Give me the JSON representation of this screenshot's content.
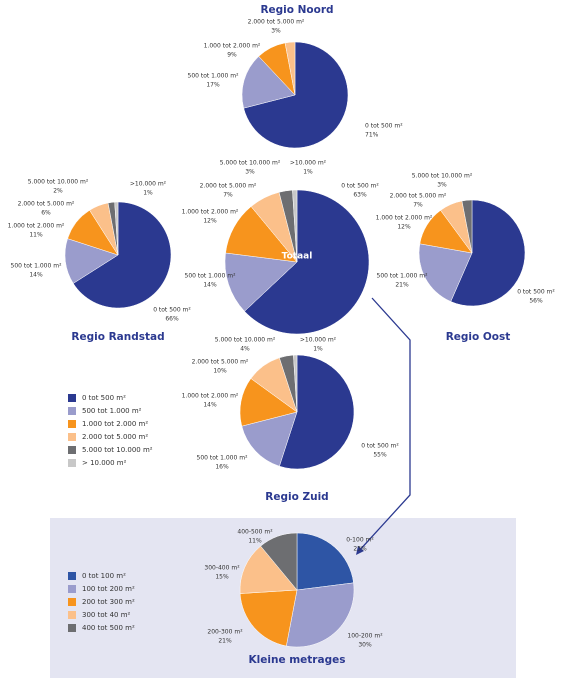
{
  "chart_data": [
    {
      "type": "pie",
      "title": "Regio Noord",
      "categories": [
        "0 tot 500 m²",
        "500 tot 1.000 m²",
        "1.000 tot 2.000 m²",
        "2.000 tot 5.000 m²"
      ],
      "values": [
        71,
        17,
        9,
        3
      ],
      "value_labels": [
        "71%",
        "17%",
        "9%",
        "3%"
      ],
      "colors": [
        "#2b3990",
        "#9a9ccc",
        "#f7941d",
        "#fbc08a"
      ]
    },
    {
      "type": "pie",
      "title": "Regio Randstad",
      "categories": [
        "0 tot 500 m²",
        "500 tot 1.000 m²",
        "1.000 tot 2.000 m²",
        "2.000 tot 5.000 m²",
        "5.000 tot 10.000 m²",
        ">10.000 m²"
      ],
      "values": [
        66,
        14,
        11,
        6,
        2,
        1
      ],
      "value_labels": [
        "66%",
        "14%",
        "11%",
        "6%",
        "2%",
        "1%"
      ],
      "colors": [
        "#2b3990",
        "#9a9ccc",
        "#f7941d",
        "#fbc08a",
        "#6d6e71",
        "#c8c8c8"
      ]
    },
    {
      "type": "pie",
      "title": "Totaal",
      "categories": [
        "0 tot 500 m²",
        "500 tot 1.000 m²",
        "1.000 tot 2.000 m²",
        "2.000 tot 5.000 m²",
        "5.000 tot 10.000 m²",
        ">10.000 m²"
      ],
      "values": [
        63,
        14,
        12,
        7,
        3,
        1
      ],
      "value_labels": [
        "63%",
        "14%",
        "12%",
        "7%",
        "3%",
        "1%"
      ],
      "colors": [
        "#2b3990",
        "#9a9ccc",
        "#f7941d",
        "#fbc08a",
        "#6d6e71",
        "#c8c8c8"
      ]
    },
    {
      "type": "pie",
      "title": "Regio Oost",
      "categories": [
        "0 tot 500 m²",
        "500 tot 1.000 m²",
        "1.000 tot 2.000 m²",
        "2.000 tot 5.000 m²",
        "5.000 tot 10.000 m²"
      ],
      "values": [
        56,
        21,
        12,
        7,
        3
      ],
      "value_labels": [
        "56%",
        "21%",
        "12%",
        "7%",
        "3%"
      ],
      "colors": [
        "#2b3990",
        "#9a9ccc",
        "#f7941d",
        "#fbc08a",
        "#6d6e71"
      ]
    },
    {
      "type": "pie",
      "title": "Regio Zuid",
      "categories": [
        "0 tot 500 m²",
        "500 tot 1.000 m²",
        "1.000 tot 2.000 m²",
        "2.000 tot 5.000 m²",
        "5.000 tot 10.000 m²",
        ">10.000 m²"
      ],
      "values": [
        55,
        16,
        14,
        10,
        4,
        1
      ],
      "value_labels": [
        "55%",
        "16%",
        "14%",
        "10%",
        "4%",
        "1%"
      ],
      "colors": [
        "#2b3990",
        "#9a9ccc",
        "#f7941d",
        "#fbc08a",
        "#6d6e71",
        "#c8c8c8"
      ]
    },
    {
      "type": "pie",
      "title": "Kleine metrages",
      "categories": [
        "0-100 m²",
        "100-200 m²",
        "200-300 m²",
        "300-400 m²",
        "400-500 m²"
      ],
      "values": [
        23,
        30,
        21,
        15,
        11
      ],
      "value_labels": [
        "23%",
        "30%",
        "21%",
        "15%",
        "11%"
      ],
      "colors": [
        "#2e55a5",
        "#9a9ccc",
        "#f7941d",
        "#fbc08a",
        "#6d6e71"
      ]
    }
  ],
  "legends": [
    {
      "labels": [
        "0 tot 500 m²",
        "500 tot 1.000 m²",
        "1.000 tot 2.000 m²",
        "2.000 tot 5.000 m²",
        "5.000 tot 10.000 m²",
        "> 10.000 m²"
      ],
      "colors": [
        "#2b3990",
        "#9a9ccc",
        "#f7941d",
        "#fbc08a",
        "#6d6e71",
        "#c8c8c8"
      ]
    },
    {
      "labels": [
        "0 tot 100 m²",
        "100 tot 200 m²",
        "200 tot 300 m²",
        "300 tot 40 m²",
        "400 tot 500 m²"
      ],
      "colors": [
        "#2e55a5",
        "#9a9ccc",
        "#f7941d",
        "#fbc08a",
        "#6d6e71"
      ]
    }
  ]
}
